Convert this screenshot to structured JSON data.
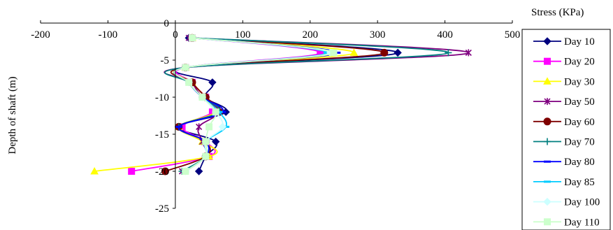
{
  "chart_data": {
    "type": "line",
    "xlabel": "Stress (KPa)",
    "ylabel": "Depth of shaft (m)",
    "xlim": [
      -200,
      500
    ],
    "ylim": [
      -25,
      0
    ],
    "xticks": [
      -200,
      -100,
      0,
      100,
      200,
      300,
      400,
      500
    ],
    "yticks": [
      0,
      -5,
      -10,
      -15,
      -20,
      -25
    ],
    "y": [
      -2,
      -4,
      -6,
      -8,
      -10,
      -12,
      -14,
      -16,
      -18,
      -20
    ],
    "legend_position": "right",
    "series": [
      {
        "name": "Day 10",
        "color": "#00007f",
        "marker": "diamond",
        "values": [
          20,
          330,
          15,
          55,
          45,
          75,
          5,
          60,
          45,
          35
        ]
      },
      {
        "name": "Day 20",
        "color": "#ff00ff",
        "marker": "square",
        "values": [
          25,
          215,
          15,
          25,
          45,
          55,
          10,
          45,
          50,
          -65
        ]
      },
      {
        "name": "Day 30",
        "color": "#ffff00",
        "marker": "triangle",
        "values": [
          25,
          265,
          15,
          25,
          45,
          60,
          5,
          40,
          50,
          -120
        ]
      },
      {
        "name": "Day 50",
        "color": "#7f007f",
        "marker": "star",
        "values": [
          20,
          435,
          15,
          25,
          40,
          65,
          35,
          40,
          45,
          10
        ]
      },
      {
        "name": "Day 60",
        "color": "#7f0000",
        "marker": "circle",
        "values": [
          25,
          310,
          15,
          25,
          45,
          65,
          5,
          45,
          45,
          -15
        ]
      },
      {
        "name": "Day 70",
        "color": "#007f7f",
        "marker": "plus",
        "values": [
          25,
          405,
          15,
          20,
          40,
          65,
          5,
          45,
          45,
          10
        ]
      },
      {
        "name": "Day 80",
        "color": "#0000ff",
        "marker": "dash",
        "values": [
          25,
          240,
          15,
          20,
          40,
          70,
          5,
          45,
          45,
          15
        ]
      },
      {
        "name": "Day 85",
        "color": "#00ccff",
        "marker": "dash",
        "values": [
          25,
          225,
          15,
          20,
          40,
          65,
          75,
          45,
          45,
          15
        ]
      },
      {
        "name": "Day 100",
        "color": "#ccffff",
        "marker": "diamond",
        "values": [
          25,
          230,
          15,
          20,
          40,
          60,
          70,
          45,
          45,
          15
        ]
      },
      {
        "name": "Day 110",
        "color": "#ccffcc",
        "marker": "square",
        "values": [
          25,
          235,
          15,
          20,
          40,
          60,
          50,
          45,
          45,
          15
        ]
      }
    ]
  }
}
